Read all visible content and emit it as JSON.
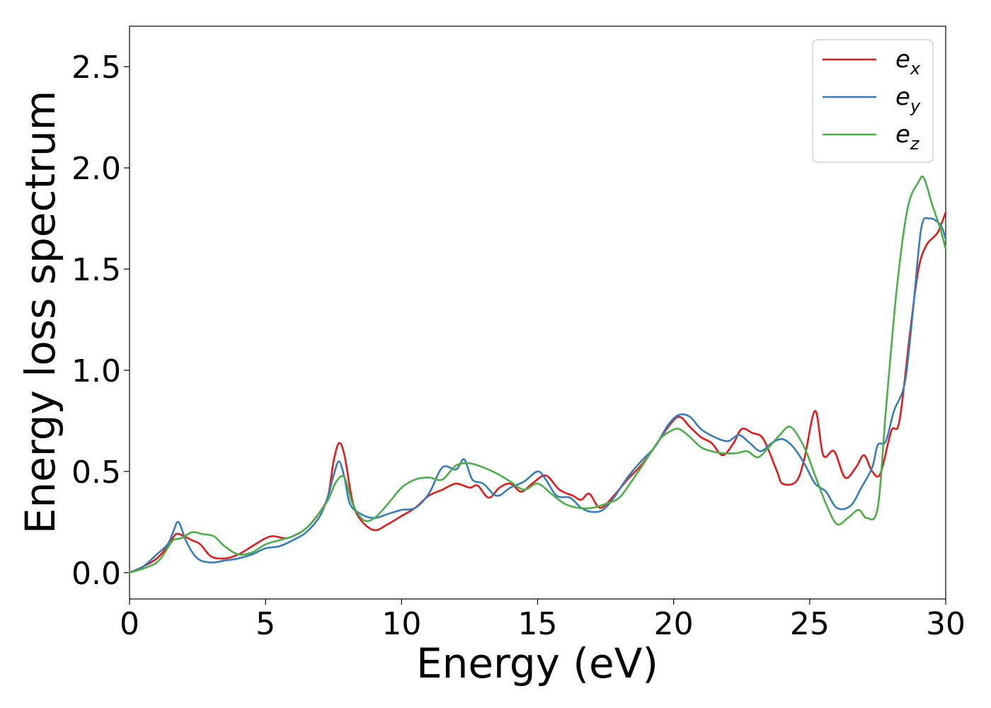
{
  "chart_data": {
    "type": "line",
    "title": "",
    "xlabel": "Energy (eV)",
    "ylabel": "Energy loss spectrum",
    "xlim": [
      0,
      30
    ],
    "ylim": [
      -0.13,
      2.7
    ],
    "xticks": [
      0,
      5,
      10,
      15,
      20,
      25,
      30
    ],
    "xtick_labels": [
      "0",
      "5",
      "10",
      "15",
      "20",
      "25",
      "30"
    ],
    "yticks": [
      0.0,
      0.5,
      1.0,
      1.5,
      2.0,
      2.5
    ],
    "ytick_labels": [
      "0.0",
      "0.5",
      "1.0",
      "1.5",
      "2.0",
      "2.5"
    ],
    "grid": false,
    "legend_position": "top-right",
    "series": [
      {
        "name": "e",
        "subscript": "x",
        "color": "#e41a1c",
        "points": [
          [
            0,
            0
          ],
          [
            0.5,
            0.03
          ],
          [
            1.0,
            0.07
          ],
          [
            1.4,
            0.13
          ],
          [
            1.7,
            0.19
          ],
          [
            2.0,
            0.18
          ],
          [
            2.3,
            0.16
          ],
          [
            2.6,
            0.14
          ],
          [
            3.0,
            0.08
          ],
          [
            3.5,
            0.07
          ],
          [
            4.0,
            0.09
          ],
          [
            4.5,
            0.13
          ],
          [
            5.0,
            0.17
          ],
          [
            5.3,
            0.18
          ],
          [
            5.7,
            0.17
          ],
          [
            6.0,
            0.18
          ],
          [
            6.5,
            0.22
          ],
          [
            7.0,
            0.3
          ],
          [
            7.3,
            0.38
          ],
          [
            7.5,
            0.55
          ],
          [
            7.7,
            0.64
          ],
          [
            7.9,
            0.58
          ],
          [
            8.2,
            0.35
          ],
          [
            8.5,
            0.26
          ],
          [
            9.0,
            0.21
          ],
          [
            9.5,
            0.24
          ],
          [
            10.0,
            0.28
          ],
          [
            10.5,
            0.32
          ],
          [
            11.0,
            0.38
          ],
          [
            11.5,
            0.41
          ],
          [
            12.0,
            0.44
          ],
          [
            12.5,
            0.42
          ],
          [
            12.8,
            0.43
          ],
          [
            13.2,
            0.37
          ],
          [
            13.6,
            0.42
          ],
          [
            14.0,
            0.44
          ],
          [
            14.4,
            0.4
          ],
          [
            14.8,
            0.44
          ],
          [
            15.3,
            0.48
          ],
          [
            15.8,
            0.41
          ],
          [
            16.3,
            0.38
          ],
          [
            16.6,
            0.36
          ],
          [
            16.9,
            0.39
          ],
          [
            17.3,
            0.32
          ],
          [
            17.8,
            0.38
          ],
          [
            18.3,
            0.46
          ],
          [
            18.8,
            0.53
          ],
          [
            19.3,
            0.62
          ],
          [
            19.8,
            0.72
          ],
          [
            20.2,
            0.77
          ],
          [
            20.6,
            0.72
          ],
          [
            21.0,
            0.67
          ],
          [
            21.4,
            0.64
          ],
          [
            21.8,
            0.58
          ],
          [
            22.2,
            0.64
          ],
          [
            22.5,
            0.71
          ],
          [
            22.9,
            0.69
          ],
          [
            23.3,
            0.66
          ],
          [
            23.8,
            0.5
          ],
          [
            24.0,
            0.44
          ],
          [
            24.5,
            0.45
          ],
          [
            24.8,
            0.56
          ],
          [
            25.2,
            0.8
          ],
          [
            25.5,
            0.58
          ],
          [
            25.9,
            0.6
          ],
          [
            26.3,
            0.47
          ],
          [
            26.7,
            0.52
          ],
          [
            27.0,
            0.58
          ],
          [
            27.3,
            0.5
          ],
          [
            27.6,
            0.49
          ],
          [
            28.0,
            0.7
          ],
          [
            28.3,
            0.75
          ],
          [
            28.7,
            1.2
          ],
          [
            29.0,
            1.5
          ],
          [
            29.3,
            1.62
          ],
          [
            29.7,
            1.68
          ],
          [
            30.0,
            1.78
          ]
        ]
      },
      {
        "name": "e",
        "subscript": "y",
        "color": "#377eb8",
        "points": [
          [
            0,
            0
          ],
          [
            0.5,
            0.03
          ],
          [
            1.0,
            0.09
          ],
          [
            1.4,
            0.14
          ],
          [
            1.6,
            0.2
          ],
          [
            1.8,
            0.25
          ],
          [
            2.1,
            0.15
          ],
          [
            2.5,
            0.07
          ],
          [
            3.0,
            0.05
          ],
          [
            3.5,
            0.06
          ],
          [
            4.0,
            0.07
          ],
          [
            4.5,
            0.09
          ],
          [
            5.0,
            0.12
          ],
          [
            5.5,
            0.13
          ],
          [
            6.0,
            0.16
          ],
          [
            6.5,
            0.2
          ],
          [
            7.0,
            0.28
          ],
          [
            7.3,
            0.38
          ],
          [
            7.5,
            0.48
          ],
          [
            7.7,
            0.55
          ],
          [
            7.9,
            0.47
          ],
          [
            8.1,
            0.34
          ],
          [
            8.5,
            0.29
          ],
          [
            9.0,
            0.27
          ],
          [
            9.5,
            0.29
          ],
          [
            10.0,
            0.31
          ],
          [
            10.5,
            0.32
          ],
          [
            11.0,
            0.39
          ],
          [
            11.5,
            0.52
          ],
          [
            12.0,
            0.51
          ],
          [
            12.3,
            0.56
          ],
          [
            12.6,
            0.46
          ],
          [
            13.0,
            0.44
          ],
          [
            13.5,
            0.38
          ],
          [
            14.0,
            0.42
          ],
          [
            14.5,
            0.45
          ],
          [
            15.0,
            0.5
          ],
          [
            15.3,
            0.46
          ],
          [
            15.7,
            0.38
          ],
          [
            16.2,
            0.37
          ],
          [
            16.6,
            0.32
          ],
          [
            17.0,
            0.3
          ],
          [
            17.4,
            0.31
          ],
          [
            17.8,
            0.37
          ],
          [
            18.3,
            0.47
          ],
          [
            18.8,
            0.55
          ],
          [
            19.3,
            0.62
          ],
          [
            19.8,
            0.73
          ],
          [
            20.2,
            0.78
          ],
          [
            20.6,
            0.77
          ],
          [
            21.0,
            0.71
          ],
          [
            21.5,
            0.67
          ],
          [
            22.0,
            0.65
          ],
          [
            22.4,
            0.68
          ],
          [
            22.8,
            0.64
          ],
          [
            23.2,
            0.6
          ],
          [
            23.6,
            0.64
          ],
          [
            24.0,
            0.66
          ],
          [
            24.4,
            0.62
          ],
          [
            24.8,
            0.54
          ],
          [
            25.2,
            0.44
          ],
          [
            25.6,
            0.4
          ],
          [
            26.0,
            0.32
          ],
          [
            26.5,
            0.33
          ],
          [
            26.9,
            0.42
          ],
          [
            27.3,
            0.52
          ],
          [
            27.5,
            0.63
          ],
          [
            27.8,
            0.65
          ],
          [
            28.1,
            0.8
          ],
          [
            28.5,
            0.94
          ],
          [
            28.8,
            1.3
          ],
          [
            29.1,
            1.7
          ],
          [
            29.4,
            1.75
          ],
          [
            29.8,
            1.72
          ],
          [
            30.0,
            1.65
          ]
        ]
      },
      {
        "name": "e",
        "subscript": "z",
        "color": "#4daf4a",
        "points": [
          [
            0,
            0
          ],
          [
            0.5,
            0.02
          ],
          [
            1.0,
            0.05
          ],
          [
            1.3,
            0.1
          ],
          [
            1.6,
            0.16
          ],
          [
            1.9,
            0.17
          ],
          [
            2.3,
            0.2
          ],
          [
            2.7,
            0.19
          ],
          [
            3.1,
            0.18
          ],
          [
            3.5,
            0.13
          ],
          [
            4.0,
            0.09
          ],
          [
            4.5,
            0.1
          ],
          [
            5.0,
            0.14
          ],
          [
            5.5,
            0.16
          ],
          [
            6.0,
            0.18
          ],
          [
            6.5,
            0.22
          ],
          [
            7.0,
            0.3
          ],
          [
            7.3,
            0.36
          ],
          [
            7.6,
            0.45
          ],
          [
            7.9,
            0.47
          ],
          [
            8.2,
            0.34
          ],
          [
            8.6,
            0.26
          ],
          [
            9.0,
            0.27
          ],
          [
            9.5,
            0.34
          ],
          [
            10.0,
            0.42
          ],
          [
            10.5,
            0.46
          ],
          [
            11.0,
            0.47
          ],
          [
            11.5,
            0.46
          ],
          [
            12.0,
            0.53
          ],
          [
            12.5,
            0.54
          ],
          [
            13.0,
            0.52
          ],
          [
            13.5,
            0.49
          ],
          [
            14.0,
            0.45
          ],
          [
            14.5,
            0.41
          ],
          [
            15.0,
            0.44
          ],
          [
            15.5,
            0.39
          ],
          [
            16.0,
            0.34
          ],
          [
            16.5,
            0.32
          ],
          [
            17.0,
            0.32
          ],
          [
            17.5,
            0.34
          ],
          [
            18.0,
            0.37
          ],
          [
            18.5,
            0.46
          ],
          [
            19.0,
            0.56
          ],
          [
            19.5,
            0.66
          ],
          [
            19.9,
            0.7
          ],
          [
            20.2,
            0.71
          ],
          [
            20.6,
            0.67
          ],
          [
            21.0,
            0.62
          ],
          [
            21.4,
            0.6
          ],
          [
            21.8,
            0.59
          ],
          [
            22.3,
            0.59
          ],
          [
            22.7,
            0.6
          ],
          [
            23.1,
            0.57
          ],
          [
            23.5,
            0.62
          ],
          [
            23.9,
            0.68
          ],
          [
            24.3,
            0.72
          ],
          [
            24.8,
            0.62
          ],
          [
            25.2,
            0.48
          ],
          [
            25.6,
            0.34
          ],
          [
            26.0,
            0.24
          ],
          [
            26.4,
            0.27
          ],
          [
            26.8,
            0.31
          ],
          [
            27.1,
            0.27
          ],
          [
            27.5,
            0.32
          ],
          [
            27.8,
            0.8
          ],
          [
            28.2,
            1.4
          ],
          [
            28.6,
            1.8
          ],
          [
            29.0,
            1.93
          ],
          [
            29.2,
            1.95
          ],
          [
            29.5,
            1.82
          ],
          [
            29.8,
            1.7
          ],
          [
            30.0,
            1.6
          ]
        ]
      }
    ]
  }
}
